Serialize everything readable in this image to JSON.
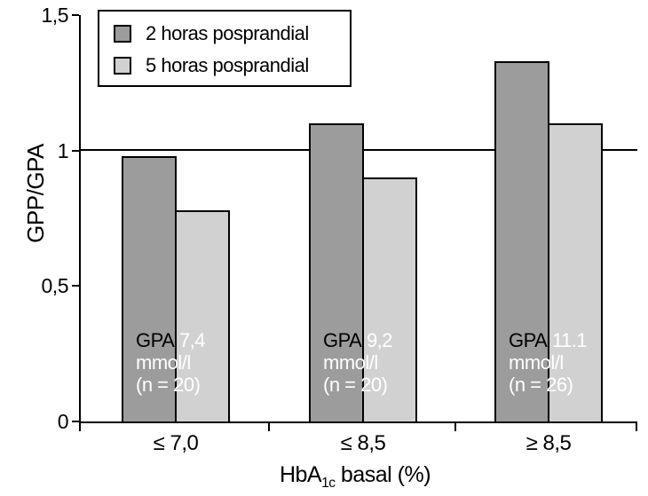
{
  "chart_data": {
    "type": "bar",
    "title": "",
    "categories": [
      "≤ 7,0",
      "≤ 8,5",
      "≥ 8,5"
    ],
    "series": [
      {
        "name": "2 horas posprandial",
        "color": "#9c9c9c",
        "values": [
          0.98,
          1.1,
          1.33
        ]
      },
      {
        "name": "5 horas posprandial",
        "color": "#d1d1d1",
        "values": [
          0.78,
          0.9,
          1.1
        ]
      }
    ],
    "ylabel": "GPP/GPA",
    "xlabel": "HbA1c basal (%)",
    "xlabel_parts": {
      "pre": "HbA",
      "sub": "1c",
      "post": " basal (%)"
    },
    "ylim": [
      0,
      1.5
    ],
    "yticks": [
      {
        "value": 0,
        "label": "0"
      },
      {
        "value": 0.5,
        "label": "0,5"
      },
      {
        "value": 1,
        "label": "1"
      },
      {
        "value": 1.5,
        "label": "1,5"
      }
    ],
    "reference_line": 1.0,
    "grid": false,
    "legend_position": "top-left",
    "bar_annotations": [
      {
        "prefix": "GPA",
        "value": "7,4",
        "unit": "mmol/l",
        "n": "(n = 20)"
      },
      {
        "prefix": "GPA",
        "value": "9,2",
        "unit": "mmol/l",
        "n": "(n = 20)"
      },
      {
        "prefix": "GPA",
        "value": "11.1",
        "unit": "mmol/l",
        "n": "(n = 26)"
      }
    ]
  }
}
